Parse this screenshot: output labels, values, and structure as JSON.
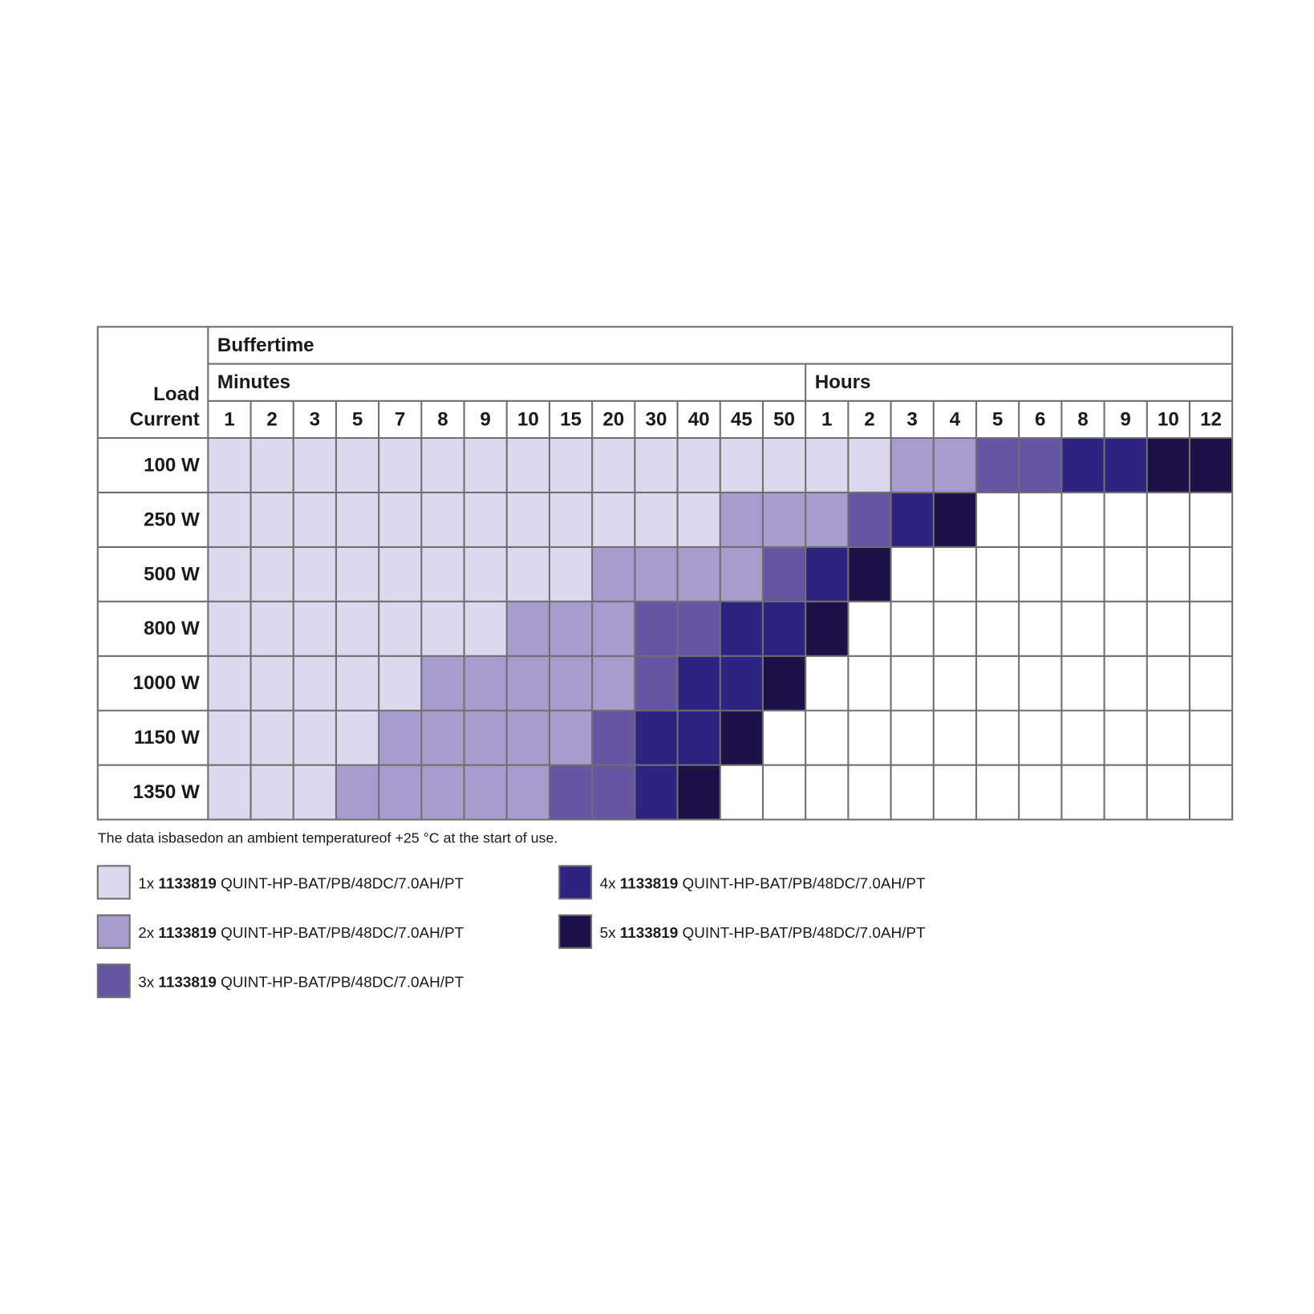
{
  "table": {
    "title": "Buffertime",
    "corner": [
      "Load",
      "Current"
    ],
    "groups": [
      {
        "label": "Minutes",
        "columns": [
          "1",
          "2",
          "3",
          "5",
          "7",
          "8",
          "9",
          "10",
          "15",
          "20",
          "30",
          "40",
          "45",
          "50"
        ]
      },
      {
        "label": "Hours",
        "columns": [
          "1",
          "2",
          "3",
          "4",
          "5",
          "6",
          "8",
          "9",
          "10",
          "12"
        ]
      }
    ],
    "rows": [
      {
        "label": "100 W",
        "levels": [
          1,
          1,
          1,
          1,
          1,
          1,
          1,
          1,
          1,
          1,
          1,
          1,
          1,
          1,
          1,
          1,
          2,
          2,
          3,
          3,
          4,
          4,
          5,
          5
        ]
      },
      {
        "label": "250 W",
        "levels": [
          1,
          1,
          1,
          1,
          1,
          1,
          1,
          1,
          1,
          1,
          1,
          1,
          2,
          2,
          2,
          3,
          4,
          5,
          0,
          0,
          0,
          0,
          0,
          0
        ]
      },
      {
        "label": "500 W",
        "levels": [
          1,
          1,
          1,
          1,
          1,
          1,
          1,
          1,
          1,
          2,
          2,
          2,
          2,
          3,
          4,
          5,
          0,
          0,
          0,
          0,
          0,
          0,
          0,
          0
        ]
      },
      {
        "label": "800 W",
        "levels": [
          1,
          1,
          1,
          1,
          1,
          1,
          1,
          2,
          2,
          2,
          3,
          3,
          4,
          4,
          5,
          0,
          0,
          0,
          0,
          0,
          0,
          0,
          0,
          0
        ]
      },
      {
        "label": "1000 W",
        "levels": [
          1,
          1,
          1,
          1,
          1,
          2,
          2,
          2,
          2,
          2,
          3,
          4,
          4,
          5,
          0,
          0,
          0,
          0,
          0,
          0,
          0,
          0,
          0,
          0
        ]
      },
      {
        "label": "1150 W",
        "levels": [
          1,
          1,
          1,
          1,
          2,
          2,
          2,
          2,
          2,
          3,
          4,
          4,
          5,
          0,
          0,
          0,
          0,
          0,
          0,
          0,
          0,
          0,
          0,
          0
        ]
      },
      {
        "label": "1350 W",
        "levels": [
          1,
          1,
          1,
          2,
          2,
          2,
          2,
          2,
          3,
          3,
          4,
          5,
          0,
          0,
          0,
          0,
          0,
          0,
          0,
          0,
          0,
          0,
          0,
          0
        ]
      }
    ]
  },
  "note": "The data isbasedon an ambient temperatureof +25 °C at the start of use.",
  "legend": [
    {
      "count": "1x",
      "code": "1133819",
      "product": "QUINT-HP-BAT/PB/48DC/7.0AH/PT",
      "color": "#dcd8ee"
    },
    {
      "count": "2x",
      "code": "1133819",
      "product": "QUINT-HP-BAT/PB/48DC/7.0AH/PT",
      "color": "#a89ccf"
    },
    {
      "count": "3x",
      "code": "1133819",
      "product": "QUINT-HP-BAT/PB/48DC/7.0AH/PT",
      "color": "#6655a3"
    },
    {
      "count": "4x",
      "code": "1133819",
      "product": "QUINT-HP-BAT/PB/48DC/7.0AH/PT",
      "color": "#2e2380"
    },
    {
      "count": "5x",
      "code": "1133819",
      "product": "QUINT-HP-BAT/PB/48DC/7.0AH/PT",
      "color": "#1e1148"
    }
  ]
}
